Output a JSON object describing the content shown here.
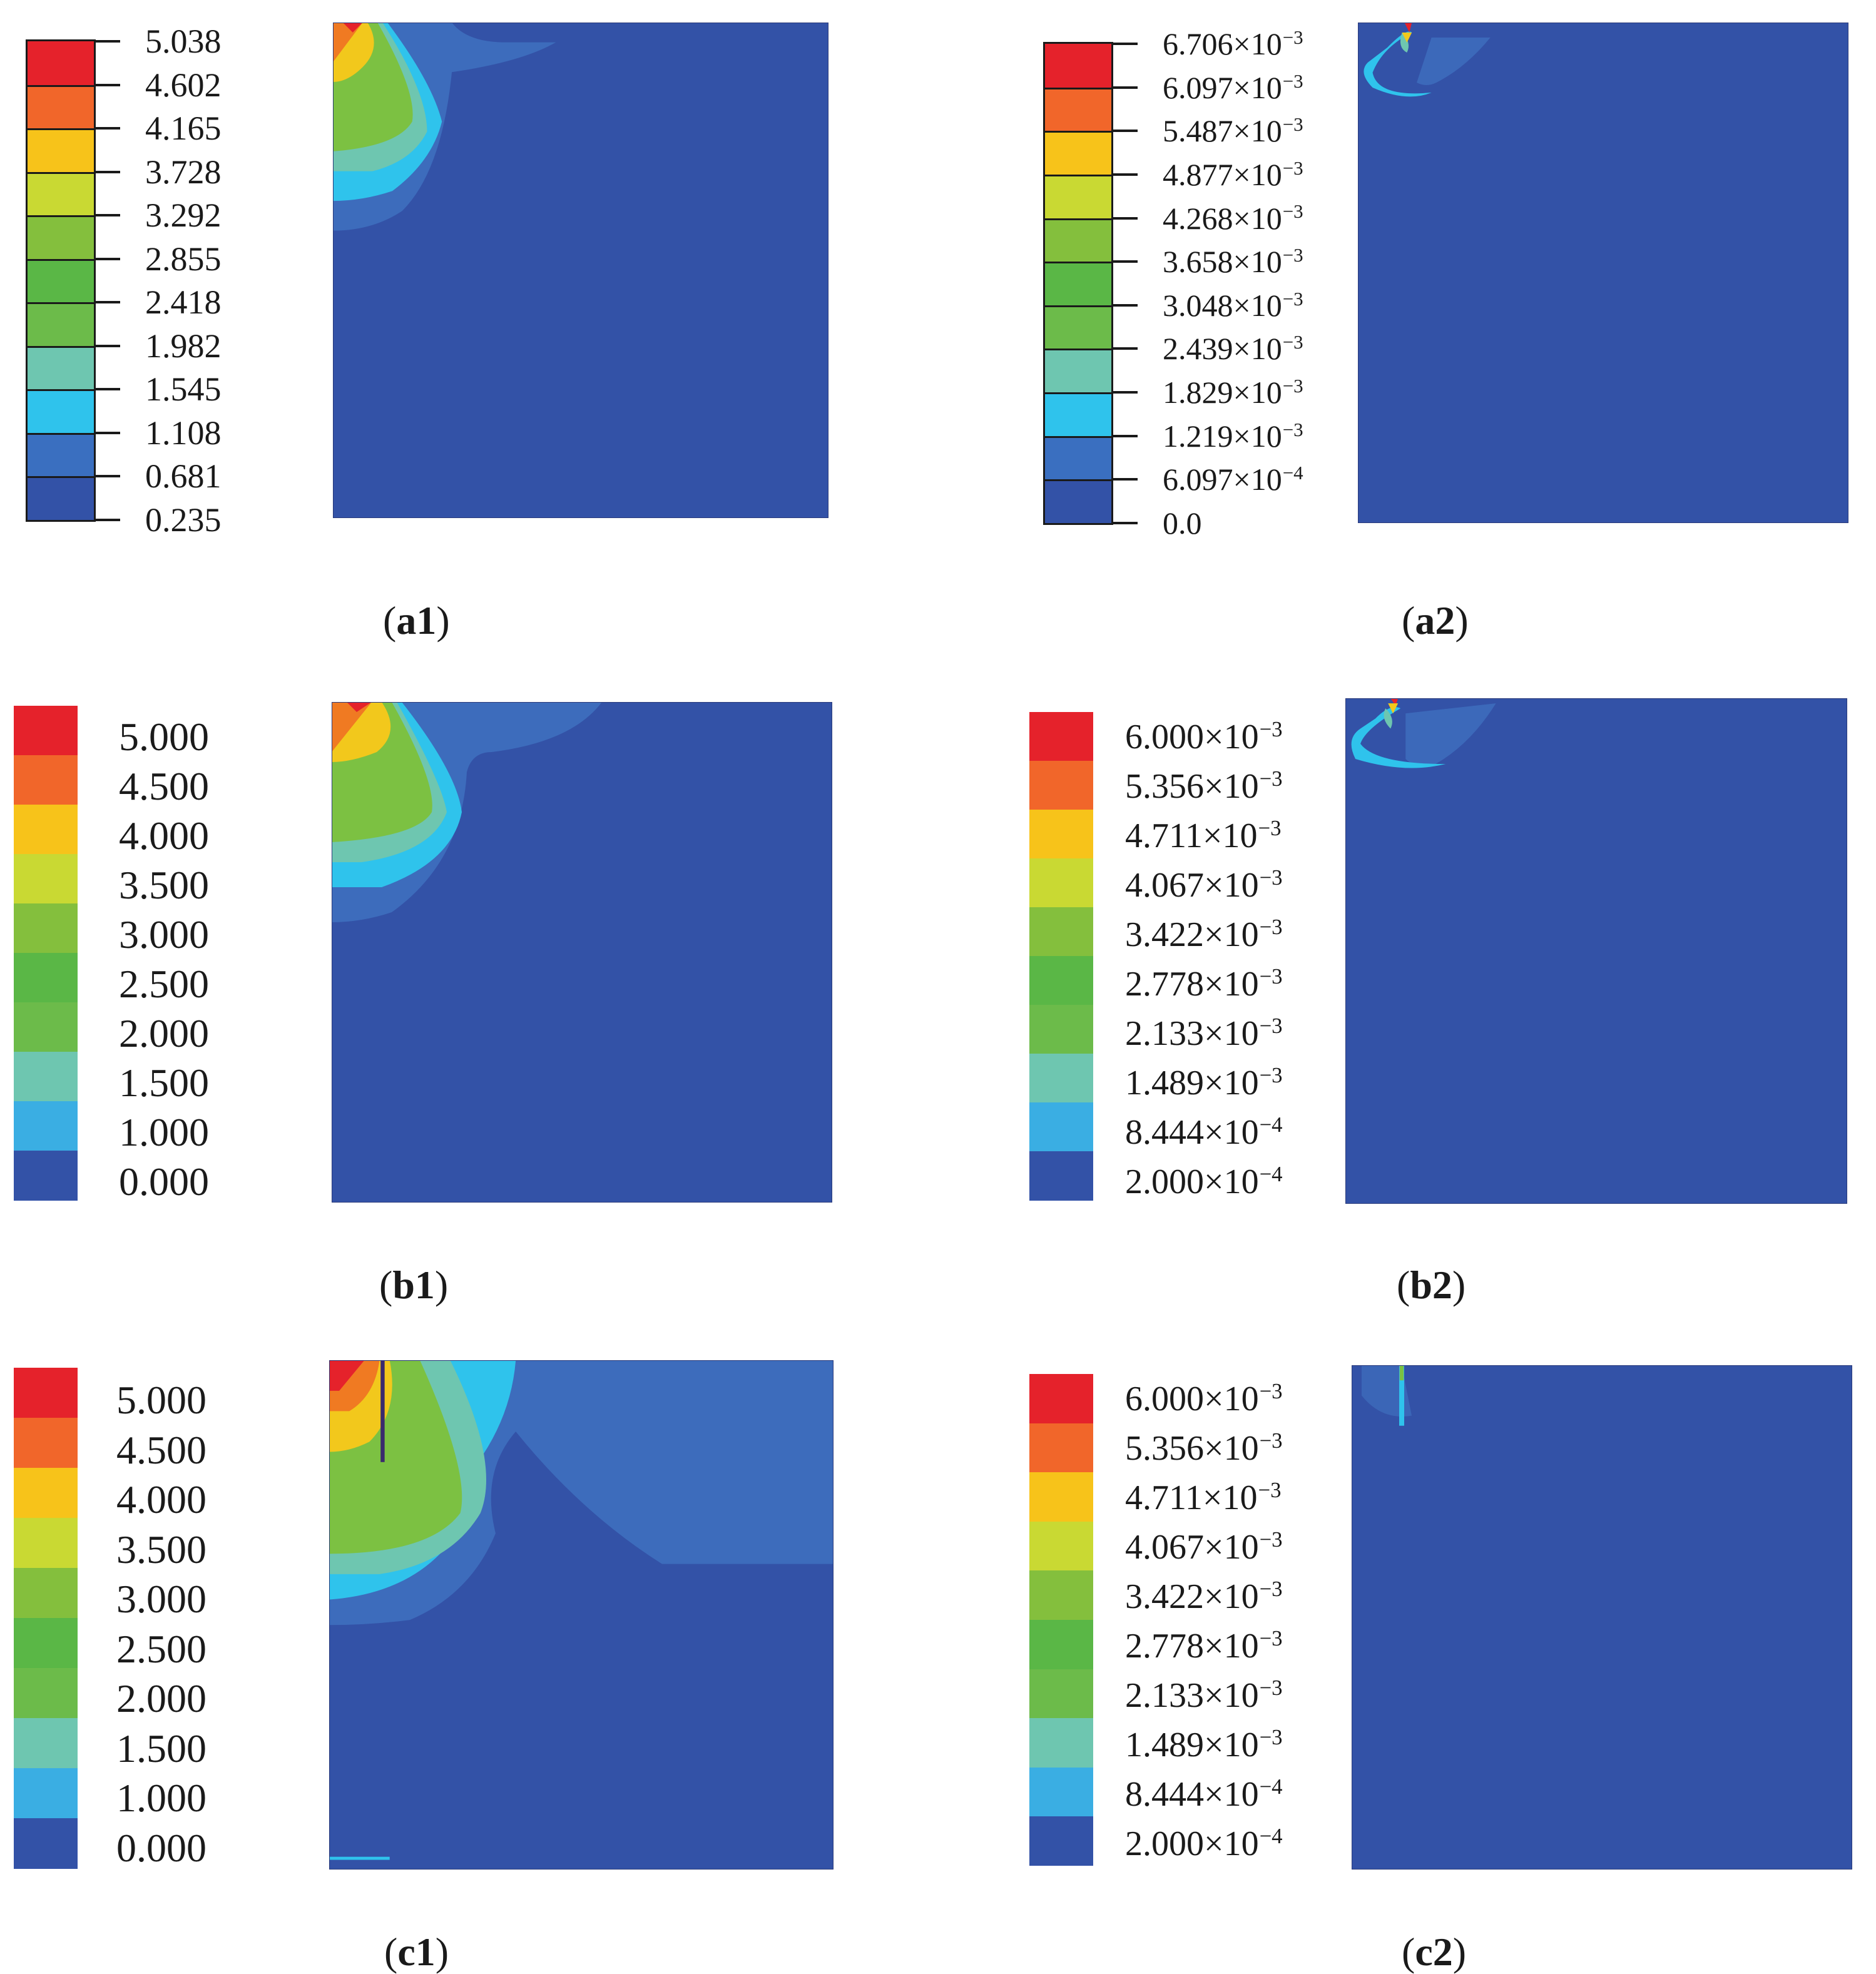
{
  "figure": {
    "panels": [
      {
        "id": "a1",
        "caption_id": "a1",
        "legend": {
          "levels": [
            "5.038",
            "4.602",
            "4.165",
            "3.728",
            "3.292",
            "2.855",
            "2.418",
            "1.982",
            "1.545",
            "1.108",
            "0.681",
            "0.235"
          ],
          "colors": [
            "#e5222b",
            "#f1662a",
            "#f7c31a",
            "#c9d933",
            "#84bf3d",
            "#5ab746",
            "#6cbb4a",
            "#6ec6b0",
            "#2fc3ec",
            "#3a6fc0",
            "#3352a7"
          ]
        },
        "field": "a1"
      },
      {
        "id": "a2",
        "caption_id": "a2",
        "legend": {
          "levels": [
            {
              "m": "6.706",
              "e": "−3"
            },
            {
              "m": "6.097",
              "e": "−3"
            },
            {
              "m": "5.487",
              "e": "−3"
            },
            {
              "m": "4.877",
              "e": "−3"
            },
            {
              "m": "4.268",
              "e": "−3"
            },
            {
              "m": "3.658",
              "e": "−3"
            },
            {
              "m": "3.048",
              "e": "−3"
            },
            {
              "m": "2.439",
              "e": "−3"
            },
            {
              "m": "1.829",
              "e": "−3"
            },
            {
              "m": "1.219",
              "e": "−3"
            },
            {
              "m": "6.097",
              "e": "−4"
            },
            {
              "m": "0.0",
              "e": ""
            }
          ],
          "colors": [
            "#e5222b",
            "#f1662a",
            "#f7c31a",
            "#c9d933",
            "#84bf3d",
            "#5ab746",
            "#6cbb4a",
            "#6ec6b0",
            "#2fc3ec",
            "#3a6fc0",
            "#3352a7"
          ]
        },
        "field": "a2"
      },
      {
        "id": "b1",
        "caption_id": "b1",
        "legend": {
          "levels": [
            "5.000",
            "4.500",
            "4.000",
            "3.500",
            "3.000",
            "2.500",
            "2.000",
            "1.500",
            "1.000",
            "0.000"
          ],
          "colors": [
            "#e5222b",
            "#f1662a",
            "#f7c31a",
            "#c9d933",
            "#84bf3d",
            "#5ab746",
            "#6cbb4a",
            "#6ec6b0",
            "#3aaee3",
            "#3352a7"
          ]
        },
        "field": "b1"
      },
      {
        "id": "b2",
        "caption_id": "b2",
        "legend": {
          "levels": [
            {
              "m": "6.000",
              "e": "−3"
            },
            {
              "m": "5.356",
              "e": "−3"
            },
            {
              "m": "4.711",
              "e": "−3"
            },
            {
              "m": "4.067",
              "e": "−3"
            },
            {
              "m": "3.422",
              "e": "−3"
            },
            {
              "m": "2.778",
              "e": "−3"
            },
            {
              "m": "2.133",
              "e": "−3"
            },
            {
              "m": "1.489",
              "e": "−3"
            },
            {
              "m": "8.444",
              "e": "−4"
            },
            {
              "m": "2.000",
              "e": "−4"
            }
          ],
          "colors": [
            "#e5222b",
            "#f1662a",
            "#f7c31a",
            "#c9d933",
            "#84bf3d",
            "#5ab746",
            "#6cbb4a",
            "#6ec6b0",
            "#3aaee3",
            "#3352a7"
          ]
        },
        "field": "b2"
      },
      {
        "id": "c1",
        "caption_id": "c1",
        "legend": {
          "levels": [
            "5.000",
            "4.500",
            "4.000",
            "3.500",
            "3.000",
            "2.500",
            "2.000",
            "1.500",
            "1.000",
            "0.000"
          ],
          "colors": [
            "#e5222b",
            "#f1662a",
            "#f7c31a",
            "#c9d933",
            "#84bf3d",
            "#5ab746",
            "#6cbb4a",
            "#6ec6b0",
            "#3aaee3",
            "#3352a7"
          ]
        },
        "field": "c1"
      },
      {
        "id": "c2",
        "caption_id": "c2",
        "legend": {
          "levels": [
            {
              "m": "6.000",
              "e": "−3"
            },
            {
              "m": "5.356",
              "e": "−3"
            },
            {
              "m": "4.711",
              "e": "−3"
            },
            {
              "m": "4.067",
              "e": "−3"
            },
            {
              "m": "3.422",
              "e": "−3"
            },
            {
              "m": "2.778",
              "e": "−3"
            },
            {
              "m": "2.133",
              "e": "−3"
            },
            {
              "m": "1.489",
              "e": "−3"
            },
            {
              "m": "8.444",
              "e": "−4"
            },
            {
              "m": "2.000",
              "e": "−4"
            }
          ],
          "colors": [
            "#e5222b",
            "#f1662a",
            "#f7c31a",
            "#c9d933",
            "#84bf3d",
            "#5ab746",
            "#6cbb4a",
            "#6ec6b0",
            "#3aaee3",
            "#3352a7"
          ]
        },
        "field": "c2"
      }
    ],
    "colors": {
      "background_field": "#3352a7",
      "band_blue": "#3d6cbc",
      "cyan": "#2fc3ec",
      "teal": "#6ec6b0",
      "green": "#7cc142",
      "yellow": "#f2c81c",
      "orange": "#f07a22",
      "red": "#e5222b"
    },
    "sci_times": "×10"
  }
}
